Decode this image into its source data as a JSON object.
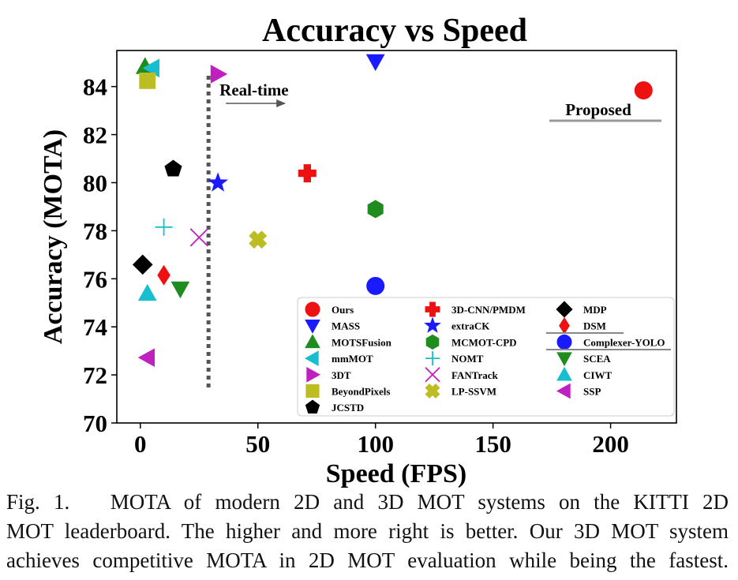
{
  "chart_data": {
    "type": "scatter",
    "title": "Accuracy vs Speed",
    "xlabel": "Speed (FPS)",
    "ylabel": "Accuracy (MOTA)",
    "xlim": [
      -10,
      228
    ],
    "ylim": [
      70,
      85.5
    ],
    "xticks": [
      0,
      50,
      100,
      150,
      200
    ],
    "yticks": [
      70,
      72,
      74,
      76,
      78,
      80,
      82,
      84
    ],
    "grid": false,
    "legend": "bottom-right",
    "annotations": {
      "realtime_label": "Real-time",
      "realtime_fps": 29,
      "proposed_label": "Proposed"
    },
    "series": [
      {
        "name": "Ours",
        "marker": "circle",
        "color": "#ee1111",
        "x": 214,
        "y": 83.84
      },
      {
        "name": "MASS",
        "marker": "triangle-down",
        "color": "#1a1aff",
        "x": 100,
        "y": 85.04
      },
      {
        "name": "MOTSFusion",
        "marker": "triangle-up",
        "color": "#1e8c1e",
        "x": 2,
        "y": 84.83
      },
      {
        "name": "mmMOT",
        "marker": "triangle-left",
        "color": "#17becf",
        "x": 5,
        "y": 84.77
      },
      {
        "name": "3DT",
        "marker": "triangle-right",
        "color": "#c020c0",
        "x": 33,
        "y": 84.52
      },
      {
        "name": "BeyondPixels",
        "marker": "square",
        "color": "#bcbd22",
        "x": 3,
        "y": 84.24
      },
      {
        "name": "JCSTD",
        "marker": "pentagon",
        "color": "#000000",
        "x": 14,
        "y": 80.57
      },
      {
        "name": "3D-CNN/PMDM",
        "marker": "plus",
        "color": "#ee1111",
        "x": 71,
        "y": 80.39
      },
      {
        "name": "extraCK",
        "marker": "star",
        "color": "#1a1aff",
        "x": 33,
        "y": 79.99
      },
      {
        "name": "MCMOT-CPD",
        "marker": "hexagon",
        "color": "#1e8c1e",
        "x": 100,
        "y": 78.9
      },
      {
        "name": "NOMT",
        "marker": "thin-plus",
        "color": "#17becf",
        "x": 10,
        "y": 78.15
      },
      {
        "name": "FANTrack",
        "marker": "thin-x",
        "color": "#c020c0",
        "x": 25,
        "y": 77.72
      },
      {
        "name": "LP-SSVM",
        "marker": "x-filled",
        "color": "#bcbd22",
        "x": 50,
        "y": 77.63
      },
      {
        "name": "MDP",
        "marker": "diamond",
        "color": "#000000",
        "x": 1,
        "y": 76.59
      },
      {
        "name": "DSM",
        "marker": "thin-diamond",
        "color": "#ee1111",
        "x": 10,
        "y": 76.15
      },
      {
        "name": "Complexer-YOLO",
        "marker": "circle",
        "color": "#1a1aff",
        "x": 100,
        "y": 75.7
      },
      {
        "name": "SCEA",
        "marker": "triangle-down",
        "color": "#1e8c1e",
        "x": 17,
        "y": 75.58
      },
      {
        "name": "CIWT",
        "marker": "triangle-up",
        "color": "#17becf",
        "x": 3,
        "y": 75.39
      },
      {
        "name": "SSP",
        "marker": "triangle-left",
        "color": "#c020c0",
        "x": 3,
        "y": 72.72
      }
    ]
  },
  "caption": {
    "lines": [
      "Fig. 1.   MOTA of modern 2D and 3D MOT systems on the KITTI 2D",
      "MOT leaderboard. The higher and more right is better. Our 3D MOT system",
      "achieves competitive MOTA in 2D MOT evaluation while being the fastest."
    ]
  }
}
